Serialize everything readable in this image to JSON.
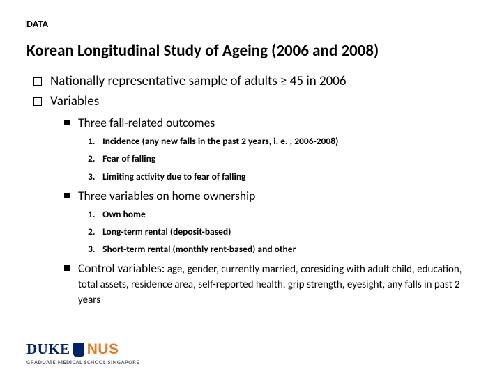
{
  "section_label": "DATA",
  "title": "Korean Longitudinal Study of Ageing (2006 and 2008)",
  "bullets": {
    "b1": "Nationally representative sample of adults ≥ 45 in 2006",
    "b2": "Variables"
  },
  "subsections": {
    "s1_title": "Three fall-related outcomes",
    "s1_items": {
      "i1": "Incidence (any new falls in the past 2 years, i. e. , 2006-2008)",
      "i2": "Fear of falling",
      "i3": "Limiting activity due to fear of falling"
    },
    "s2_title": "Three variables on home ownership",
    "s2_items": {
      "i1": "Own home",
      "i2": "Long-term rental (deposit-based)",
      "i3": "Short-term rental (monthly rent-based) and other"
    },
    "s3_title": "Control variables:",
    "s3_detail": " age, gender, currently married, coresiding  with adult child, education, total assets, residence area, self-reported health, grip strength, eyesight, any falls in past 2 years"
  },
  "logo": {
    "duke": "DUKE",
    "nus": "NUS",
    "sub": "GRADUATE MEDICAL SCHOOL SINGAPORE"
  },
  "colors": {
    "duke_blue": "#012169",
    "nus_orange": "#e87722",
    "text": "#000000",
    "bg": "#ffffff"
  }
}
